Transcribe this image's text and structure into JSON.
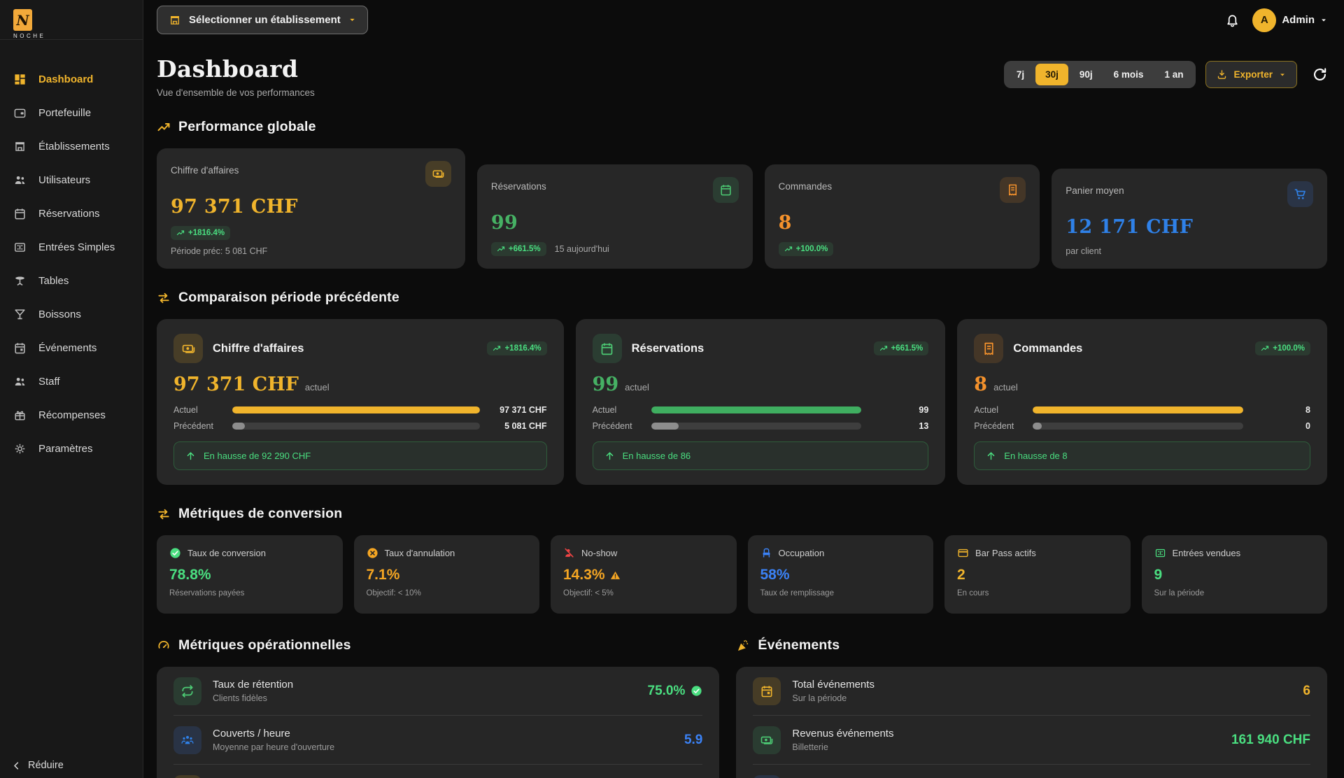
{
  "colors": {
    "amber": "#f0b42c",
    "green": "#4ade80",
    "orange": "#f5922c",
    "blue": "#3b82f6",
    "red": "#ef4444"
  },
  "brand": {
    "logo_letter": "N",
    "logo_name": "NOCHE"
  },
  "topbar": {
    "establishment_selector": "Sélectionner un établissement",
    "user_initial": "A",
    "user_name": "Admin"
  },
  "sidebar": {
    "items": [
      {
        "label": "Dashboard"
      },
      {
        "label": "Portefeuille"
      },
      {
        "label": "Établissements"
      },
      {
        "label": "Utilisateurs"
      },
      {
        "label": "Réservations"
      },
      {
        "label": "Entrées Simples"
      },
      {
        "label": "Tables"
      },
      {
        "label": "Boissons"
      },
      {
        "label": "Événements"
      },
      {
        "label": "Staff"
      },
      {
        "label": "Récompenses"
      },
      {
        "label": "Paramètres"
      }
    ],
    "collapse_label": "Réduire"
  },
  "header": {
    "title": "Dashboard",
    "subtitle": "Vue d'ensemble de vos performances",
    "ranges": [
      "7j",
      "30j",
      "90j",
      "6 mois",
      "1 an"
    ],
    "active_range": "30j",
    "export_label": "Exporter"
  },
  "performance": {
    "title": "Performance globale",
    "cards": [
      {
        "label": "Chiffre d'affaires",
        "value": "97 371 CHF",
        "badge": "+1816.4%",
        "note": "Période préc: 5 081 CHF"
      },
      {
        "label": "Réservations",
        "value": "99",
        "badge": "+661.5%",
        "note": "15 aujourd'hui"
      },
      {
        "label": "Commandes",
        "value": "8",
        "badge": "+100.0%"
      },
      {
        "label": "Panier moyen",
        "value": "12 171 CHF",
        "note": "par client"
      }
    ]
  },
  "comparison": {
    "title": "Comparaison période précédente",
    "cards": [
      {
        "label": "Chiffre d'affaires",
        "badge": "+1816.4%",
        "value": "97 371 CHF",
        "value_note": "actuel",
        "rows": [
          {
            "label": "Actuel",
            "value": "97 371 CHF",
            "pct": 100
          },
          {
            "label": "Précédent",
            "value": "5 081 CHF",
            "pct": 5.2
          }
        ],
        "banner": "En hausse de 92 290 CHF"
      },
      {
        "label": "Réservations",
        "badge": "+661.5%",
        "value": "99",
        "value_note": "actuel",
        "rows": [
          {
            "label": "Actuel",
            "value": "99",
            "pct": 100
          },
          {
            "label": "Précédent",
            "value": "13",
            "pct": 13
          }
        ],
        "banner": "En hausse de 86"
      },
      {
        "label": "Commandes",
        "badge": "+100.0%",
        "value": "8",
        "value_note": "actuel",
        "rows": [
          {
            "label": "Actuel",
            "value": "8",
            "pct": 100
          },
          {
            "label": "Précédent",
            "value": "0",
            "pct": 1
          }
        ],
        "banner": "En hausse de 8"
      }
    ]
  },
  "conversion": {
    "title": "Métriques de conversion",
    "cards": [
      {
        "label": "Taux de conversion",
        "value": "78.8%",
        "note": "Réservations payées"
      },
      {
        "label": "Taux d'annulation",
        "value": "7.1%",
        "note": "Objectif: < 10%"
      },
      {
        "label": "No-show",
        "value": "14.3%",
        "note": "Objectif: < 5%"
      },
      {
        "label": "Occupation",
        "value": "58%",
        "note": "Taux de remplissage"
      },
      {
        "label": "Bar Pass actifs",
        "value": "2",
        "note": "En cours"
      },
      {
        "label": "Entrées vendues",
        "value": "9",
        "note": "Sur la période"
      }
    ]
  },
  "operational": {
    "title": "Métriques opérationnelles",
    "rows": [
      {
        "label": "Taux de rétention",
        "sub": "Clients fidèles",
        "value": "75.0%"
      },
      {
        "label": "Couverts / heure",
        "sub": "Moyenne par heure d'ouverture",
        "value": "5.9"
      }
    ]
  },
  "events": {
    "title": "Événements",
    "rows": [
      {
        "label": "Total événements",
        "sub": "Sur la période",
        "value": "6"
      },
      {
        "label": "Revenus événements",
        "sub": "Billetterie",
        "value": "161 940 CHF"
      }
    ]
  }
}
